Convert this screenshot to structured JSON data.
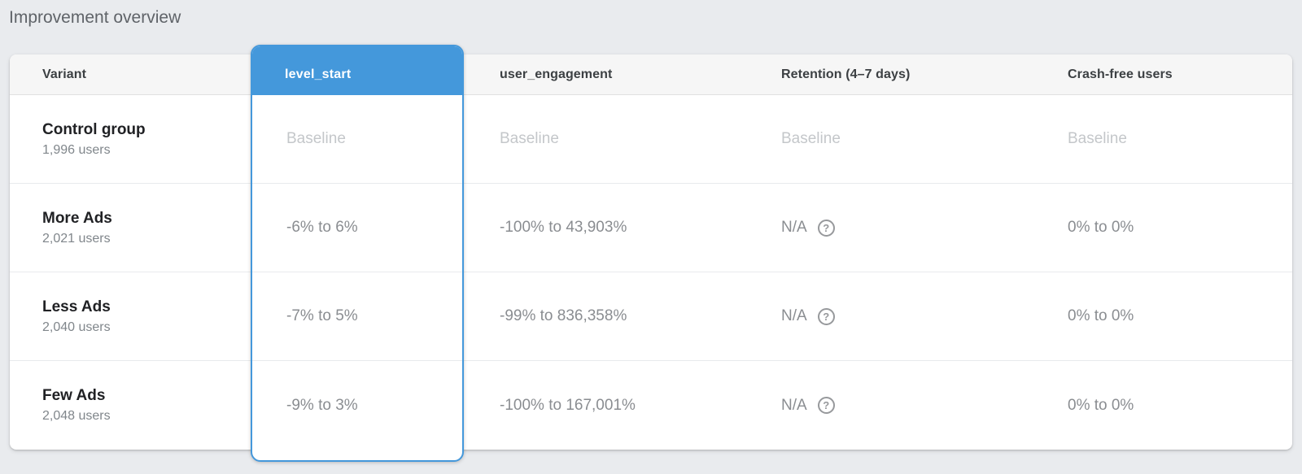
{
  "page": {
    "title": "Improvement overview"
  },
  "colors": {
    "accent": "#4498DB",
    "page_background": "#E9EBEE",
    "baseline_text": "#C4C7CA",
    "value_text": "#8A8D91"
  },
  "table": {
    "columns": {
      "variant": "Variant",
      "level_start": "level_start",
      "user_engagement": "user_engagement",
      "retention": "Retention (4–7 days)",
      "crash_free": "Crash-free users"
    },
    "selected_column": "level_start",
    "help_icon_glyph": "?",
    "rows": [
      {
        "variant": "Control group",
        "users": "1,996 users",
        "level_start": "Baseline",
        "user_engagement": "Baseline",
        "retention": "Baseline",
        "crash_free": "Baseline"
      },
      {
        "variant": "More Ads",
        "users": "2,021 users",
        "level_start": "-6% to 6%",
        "user_engagement": "-100% to 43,903%",
        "retention": "N/A",
        "crash_free": "0% to 0%"
      },
      {
        "variant": "Less Ads",
        "users": "2,040 users",
        "level_start": "-7% to 5%",
        "user_engagement": "-99% to 836,358%",
        "retention": "N/A",
        "crash_free": "0% to 0%"
      },
      {
        "variant": "Few Ads",
        "users": "2,048 users",
        "level_start": "-9% to 3%",
        "user_engagement": "-100% to 167,001%",
        "retention": "N/A",
        "crash_free": "0% to 0%"
      }
    ]
  }
}
